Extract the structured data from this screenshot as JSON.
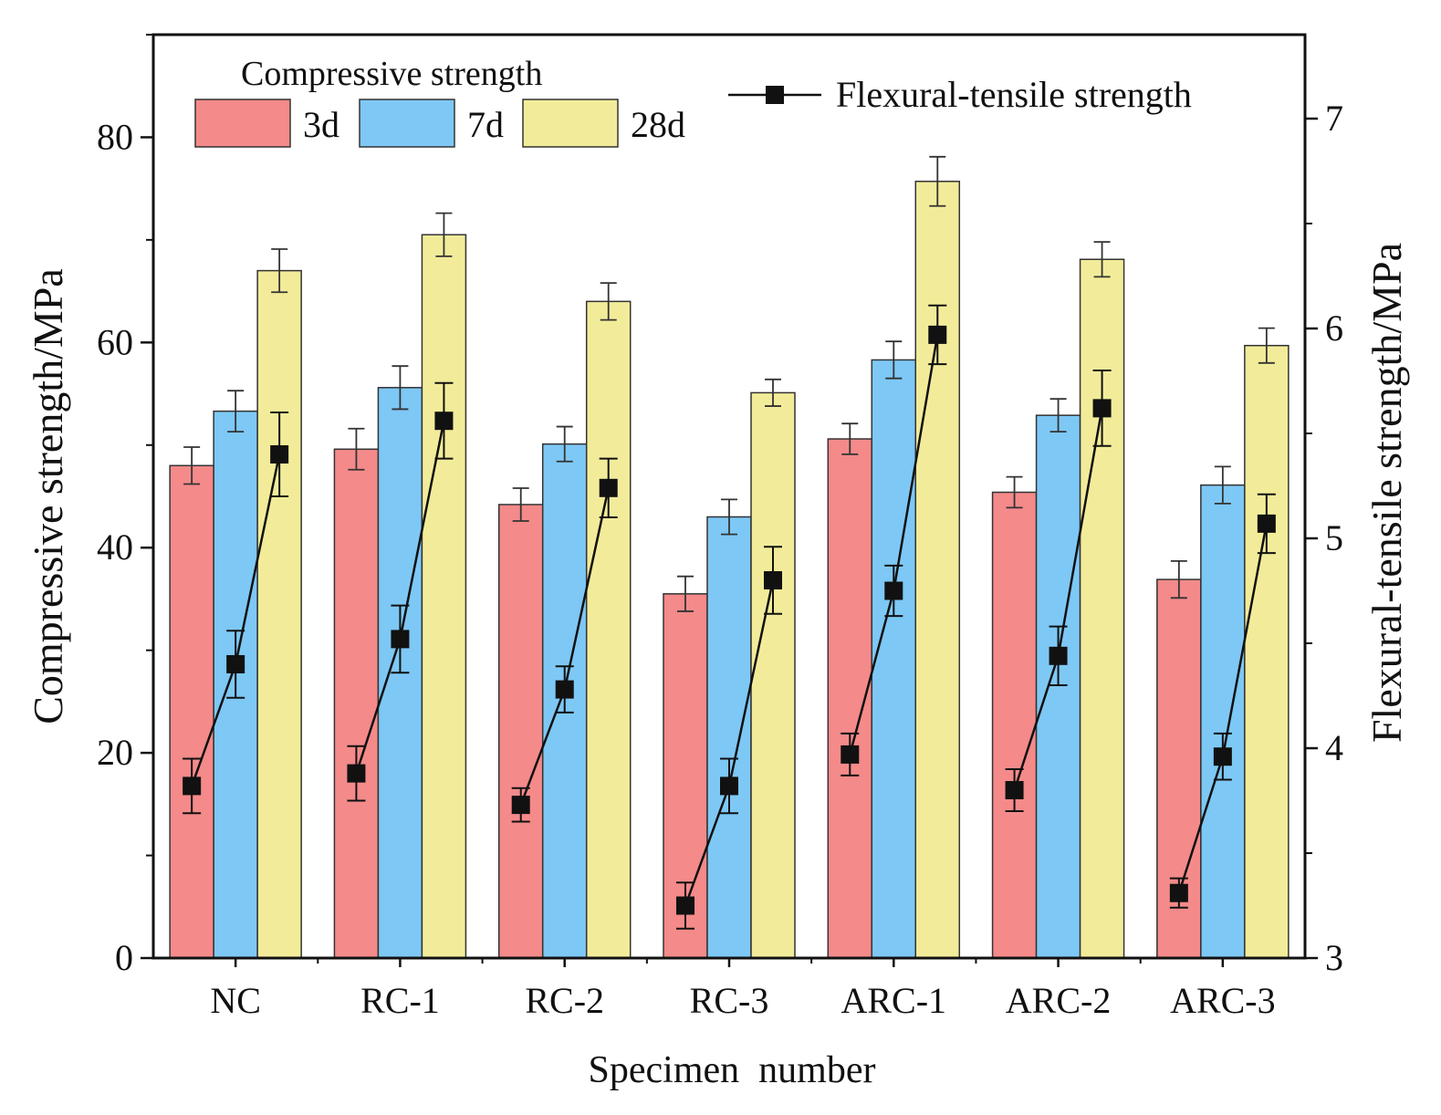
{
  "chart_data": {
    "type": "bar",
    "xlabel": "Specimen  number",
    "ylabel_left": "Compressive strength/MPa",
    "ylabel_right": "Flexural-tensile strength/MPa",
    "ylim_left": [
      0,
      90
    ],
    "ylim_right": [
      3,
      7.4
    ],
    "yticks_left": [
      "0",
      "20",
      "40",
      "60",
      "80"
    ],
    "yticks_right": [
      "3",
      "4",
      "5",
      "6",
      "7"
    ],
    "categories": [
      "NC",
      "RC-1",
      "RC-2",
      "RC-3",
      "ARC-1",
      "ARC-2",
      "ARC-3"
    ],
    "legend_title": "Compressive strength",
    "series": [
      {
        "name": "3d",
        "color": "#f48a8a",
        "values": [
          48.0,
          49.6,
          44.2,
          35.5,
          50.6,
          45.4,
          36.9
        ],
        "errors": [
          1.8,
          2.0,
          1.6,
          1.7,
          1.5,
          1.5,
          1.8
        ]
      },
      {
        "name": "7d",
        "color": "#7ec8f5",
        "values": [
          53.3,
          55.6,
          50.1,
          43.0,
          58.3,
          52.9,
          46.1
        ],
        "errors": [
          2.0,
          2.1,
          1.7,
          1.7,
          1.8,
          1.6,
          1.8
        ]
      },
      {
        "name": "28d",
        "color": "#f2ec9a",
        "values": [
          67.0,
          70.5,
          64.0,
          55.1,
          75.7,
          68.1,
          59.7
        ],
        "errors": [
          2.1,
          2.1,
          1.8,
          1.3,
          2.4,
          1.7,
          1.7
        ]
      }
    ],
    "line_series": {
      "name": "Flexural-tensile strength",
      "color": "#111111",
      "values": [
        [
          3.82,
          4.4,
          5.4
        ],
        [
          3.88,
          4.52,
          5.56
        ],
        [
          3.73,
          4.28,
          5.24
        ],
        [
          3.25,
          3.82,
          4.8
        ],
        [
          3.97,
          4.75,
          5.97
        ],
        [
          3.8,
          4.44,
          5.62
        ],
        [
          3.31,
          3.96,
          5.07
        ]
      ],
      "errors": [
        [
          0.13,
          0.16,
          0.2
        ],
        [
          0.13,
          0.16,
          0.18
        ],
        [
          0.08,
          0.11,
          0.14
        ],
        [
          0.11,
          0.13,
          0.16
        ],
        [
          0.1,
          0.12,
          0.14
        ],
        [
          0.1,
          0.14,
          0.18
        ],
        [
          0.07,
          0.11,
          0.14
        ]
      ]
    }
  }
}
